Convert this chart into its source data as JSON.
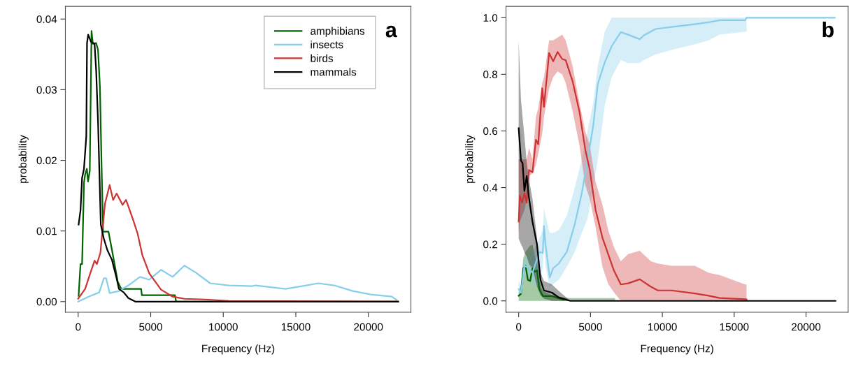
{
  "chart_data": [
    {
      "type": "line",
      "xlabel": "Frequency (Hz)",
      "ylabel": "probability",
      "annotations": [
        "a"
      ],
      "legend": "top right",
      "xlim": [
        -882,
        22932
      ],
      "xticks": [
        0,
        5000,
        10000,
        15000,
        20000
      ],
      "ylim": [
        -0.0015,
        0.0418
      ],
      "yticks": [
        {
          "value": 0,
          "label": "0.00"
        },
        {
          "value": 0.01,
          "label": "0.01"
        },
        {
          "value": 0.02,
          "label": "0.02"
        },
        {
          "value": 0.03,
          "label": "0.03"
        },
        {
          "value": 0.04,
          "label": "0.04"
        }
      ],
      "series": [
        {
          "name": "amphibians",
          "color": "#006400",
          "x": [
            30,
            160,
            270,
            400,
            480,
            600,
            680,
            800,
            920,
            1010,
            1240,
            1370,
            1500,
            1610,
            1720,
            2090,
            2330,
            2570,
            2730,
            2970,
            4340,
            4390,
            6670,
            6750,
            22050
          ],
          "values": [
            0.0008,
            0.0053,
            0.0053,
            0.0168,
            0.018,
            0.0188,
            0.017,
            0.0185,
            0.0383,
            0.0365,
            0.0366,
            0.0356,
            0.0304,
            0.0195,
            0.0099,
            0.0099,
            0.0073,
            0.0046,
            0.0028,
            0.0018,
            0.0018,
            0.0009,
            0.0009,
            0,
            0
          ]
        },
        {
          "name": "insects",
          "color": "#87ceeb",
          "x": [
            0,
            720,
            1450,
            1770,
            1930,
            2170,
            2810,
            3460,
            4260,
            4900,
            5710,
            6510,
            7320,
            8120,
            9090,
            10370,
            11980,
            12230,
            14290,
            15720,
            16540,
            17640,
            18930,
            20180,
            21620,
            21960
          ],
          "values": [
            0,
            0.0007,
            0.0013,
            0.0033,
            0.0033,
            0.0012,
            0.0015,
            0.0023,
            0.0035,
            0.0031,
            0.0045,
            0.0035,
            0.0051,
            0.0041,
            0.0026,
            0.0023,
            0.0022,
            0.0023,
            0.0018,
            0.0023,
            0.0026,
            0.0023,
            0.0015,
            0.001,
            0.0007,
            0.0002
          ]
        },
        {
          "name": "birds",
          "color": "#cd3333",
          "x": [
            0,
            480,
            800,
            1130,
            1290,
            1530,
            1850,
            2170,
            2410,
            2650,
            3060,
            3300,
            3780,
            4100,
            4420,
            4900,
            5710,
            6510,
            7320,
            8760,
            10370,
            22050
          ],
          "values": [
            0.0004,
            0.0018,
            0.0038,
            0.0058,
            0.0053,
            0.0069,
            0.0139,
            0.0165,
            0.0144,
            0.0153,
            0.0137,
            0.0144,
            0.0116,
            0.0096,
            0.0066,
            0.004,
            0.0017,
            0.0007,
            0.0004,
            0.0003,
            0.0001,
            0
          ]
        },
        {
          "name": "mammals",
          "color": "#000000",
          "x": [
            30,
            160,
            270,
            400,
            560,
            610,
            690,
            880,
            1130,
            1240,
            1370,
            1560,
            1770,
            2010,
            2330,
            2650,
            2810,
            3140,
            3460,
            3940,
            22050
          ],
          "values": [
            0.0109,
            0.0129,
            0.0175,
            0.0188,
            0.0234,
            0.0366,
            0.0378,
            0.0368,
            0.0365,
            0.0327,
            0.0254,
            0.0109,
            0.0089,
            0.0073,
            0.0059,
            0.0033,
            0.0018,
            0.0013,
            0.0005,
            0,
            0
          ]
        }
      ]
    },
    {
      "type": "line",
      "xlabel": "Frequency (Hz)",
      "ylabel": "probability",
      "annotations": [
        "b"
      ],
      "xlim": [
        -882,
        22932
      ],
      "xticks": [
        0,
        5000,
        10000,
        15000,
        20000
      ],
      "ylim": [
        -0.04,
        1.04
      ],
      "yticks": [
        {
          "value": 0,
          "label": "0.0"
        },
        {
          "value": 0.2,
          "label": "0.2"
        },
        {
          "value": 0.4,
          "label": "0.4"
        },
        {
          "value": 0.6,
          "label": "0.6"
        },
        {
          "value": 0.8,
          "label": "0.8"
        },
        {
          "value": 1,
          "label": "1.0"
        }
      ],
      "series": [
        {
          "color": "#006400",
          "x": [
            0,
            160,
            320,
            480,
            640,
            800,
            960,
            1120,
            1280,
            1440,
            1680,
            2320,
            3110,
            3590,
            6710
          ],
          "values": [
            0.018,
            0.025,
            0.115,
            0.124,
            0.074,
            0.07,
            0.115,
            0.103,
            0.107,
            0.041,
            0.017,
            0.017,
            0.004,
            null,
            null
          ],
          "upper": [
            0.03,
            0.06,
            0.15,
            0.173,
            0.185,
            0.195,
            0.198,
            0.16,
            0.13,
            0.07,
            0.035,
            0.02,
            0.012,
            0.01,
            0.01
          ],
          "lower": [
            0,
            0,
            0,
            0,
            0,
            0,
            0,
            0,
            0,
            0,
            0,
            0,
            0,
            0,
            0
          ]
        },
        {
          "color": "#87ceeb",
          "x": [
            0,
            160,
            400,
            720,
            960,
            1440,
            1680,
            1760,
            1870,
            2160,
            2400,
            2790,
            3350,
            3910,
            4390,
            4790,
            5190,
            5510,
            5990,
            6470,
            7110,
            7620,
            8430,
            8720,
            9530,
            10630,
            12260,
            13220,
            13990,
            15760,
            15860,
            22000
          ],
          "values": [
            0.041,
            0.029,
            0.124,
            0.115,
            0.099,
            0.173,
            0.169,
            0.264,
            0.198,
            0.083,
            0.115,
            0.132,
            0.173,
            0.272,
            0.38,
            0.495,
            0.619,
            0.767,
            0.842,
            0.899,
            0.949,
            0.94,
            0.924,
            0.938,
            0.96,
            0.967,
            0.977,
            0.984,
            0.991,
            0.991,
            1.0,
            1.0
          ],
          "upper": [
            0.07,
            0.06,
            0.15,
            0.16,
            0.17,
            0.22,
            0.25,
            0.33,
            0.3,
            0.24,
            0.24,
            0.25,
            0.3,
            0.4,
            0.5,
            0.6,
            0.7,
            0.83,
            0.95,
            1.0,
            1.0,
            1.0,
            1.0,
            1.0,
            1.0,
            1.0,
            1.0,
            1.0,
            1.0,
            1.0,
            1.0,
            null
          ],
          "lower": [
            0.02,
            0.02,
            0.09,
            0.08,
            0.06,
            0.05,
            0.12,
            0.2,
            0.12,
            0.05,
            0.06,
            0.074,
            0.12,
            0.173,
            0.24,
            0.29,
            0.4,
            0.5,
            0.69,
            0.79,
            0.85,
            0.84,
            0.84,
            0.85,
            0.87,
            0.886,
            0.906,
            0.92,
            0.94,
            0.95,
            0.95,
            null
          ]
        },
        {
          "color": "#cd3333",
          "x": [
            0,
            80,
            240,
            400,
            560,
            720,
            960,
            1200,
            1360,
            1640,
            1760,
            2120,
            2400,
            2710,
            3030,
            3270,
            3750,
            4230,
            4630,
            4950,
            5350,
            5830,
            6230,
            6630,
            7110,
            7620,
            8430,
            9200,
            9690,
            10630,
            12260,
            13220,
            13990,
            15760,
            15860
          ],
          "values": [
            0.28,
            0.371,
            0.347,
            0.38,
            0.347,
            0.462,
            0.454,
            0.569,
            0.553,
            0.751,
            0.685,
            0.875,
            0.846,
            0.879,
            0.854,
            0.85,
            0.776,
            0.668,
            0.536,
            0.462,
            0.322,
            0.223,
            0.165,
            0.107,
            0.058,
            0.062,
            0.076,
            0.05,
            0.037,
            0.037,
            0.026,
            0.018,
            0.01,
            0.006,
            0.005
          ],
          "upper": [
            0.5,
            0.5,
            0.5,
            0.5,
            0.5,
            0.54,
            0.5,
            0.65,
            0.68,
            0.77,
            0.79,
            0.92,
            0.92,
            0.93,
            0.94,
            0.92,
            0.83,
            0.7,
            0.6,
            0.55,
            0.42,
            0.34,
            0.25,
            0.19,
            0.14,
            0.165,
            0.177,
            0.14,
            0.132,
            0.124,
            0.124,
            0.099,
            0.091,
            0.058,
            0.058
          ],
          "lower": [
            0.24,
            0.28,
            0.3,
            0.32,
            0.36,
            0.44,
            0.45,
            0.48,
            0.52,
            0.59,
            0.65,
            0.75,
            0.79,
            0.81,
            0.8,
            0.77,
            0.67,
            0.55,
            0.41,
            0.36,
            0.26,
            0.12,
            0.06,
            0.03,
            0,
            0,
            0,
            0,
            0,
            0,
            0,
            0,
            0,
            0,
            0
          ]
        },
        {
          "color": "#000000",
          "x": [
            0,
            160,
            270,
            400,
            560,
            720,
            960,
            1280,
            1520,
            1760,
            2320,
            2790,
            3590,
            22050
          ],
          "values": [
            0.61,
            0.495,
            0.487,
            0.388,
            0.441,
            0.363,
            0.28,
            0.198,
            0.074,
            0.037,
            0.029,
            0.012,
            0,
            0
          ],
          "upper": [
            0.92,
            0.71,
            0.65,
            0.58,
            0.49,
            0.43,
            0.36,
            0.22,
            0.1,
            0.07,
            0.058,
            0.035,
            0,
            null
          ],
          "lower": [
            0.22,
            0.2,
            0.19,
            0.17,
            0.157,
            0.13,
            0.115,
            0.05,
            0.02,
            0.008,
            0,
            0,
            0,
            null
          ]
        }
      ]
    }
  ]
}
